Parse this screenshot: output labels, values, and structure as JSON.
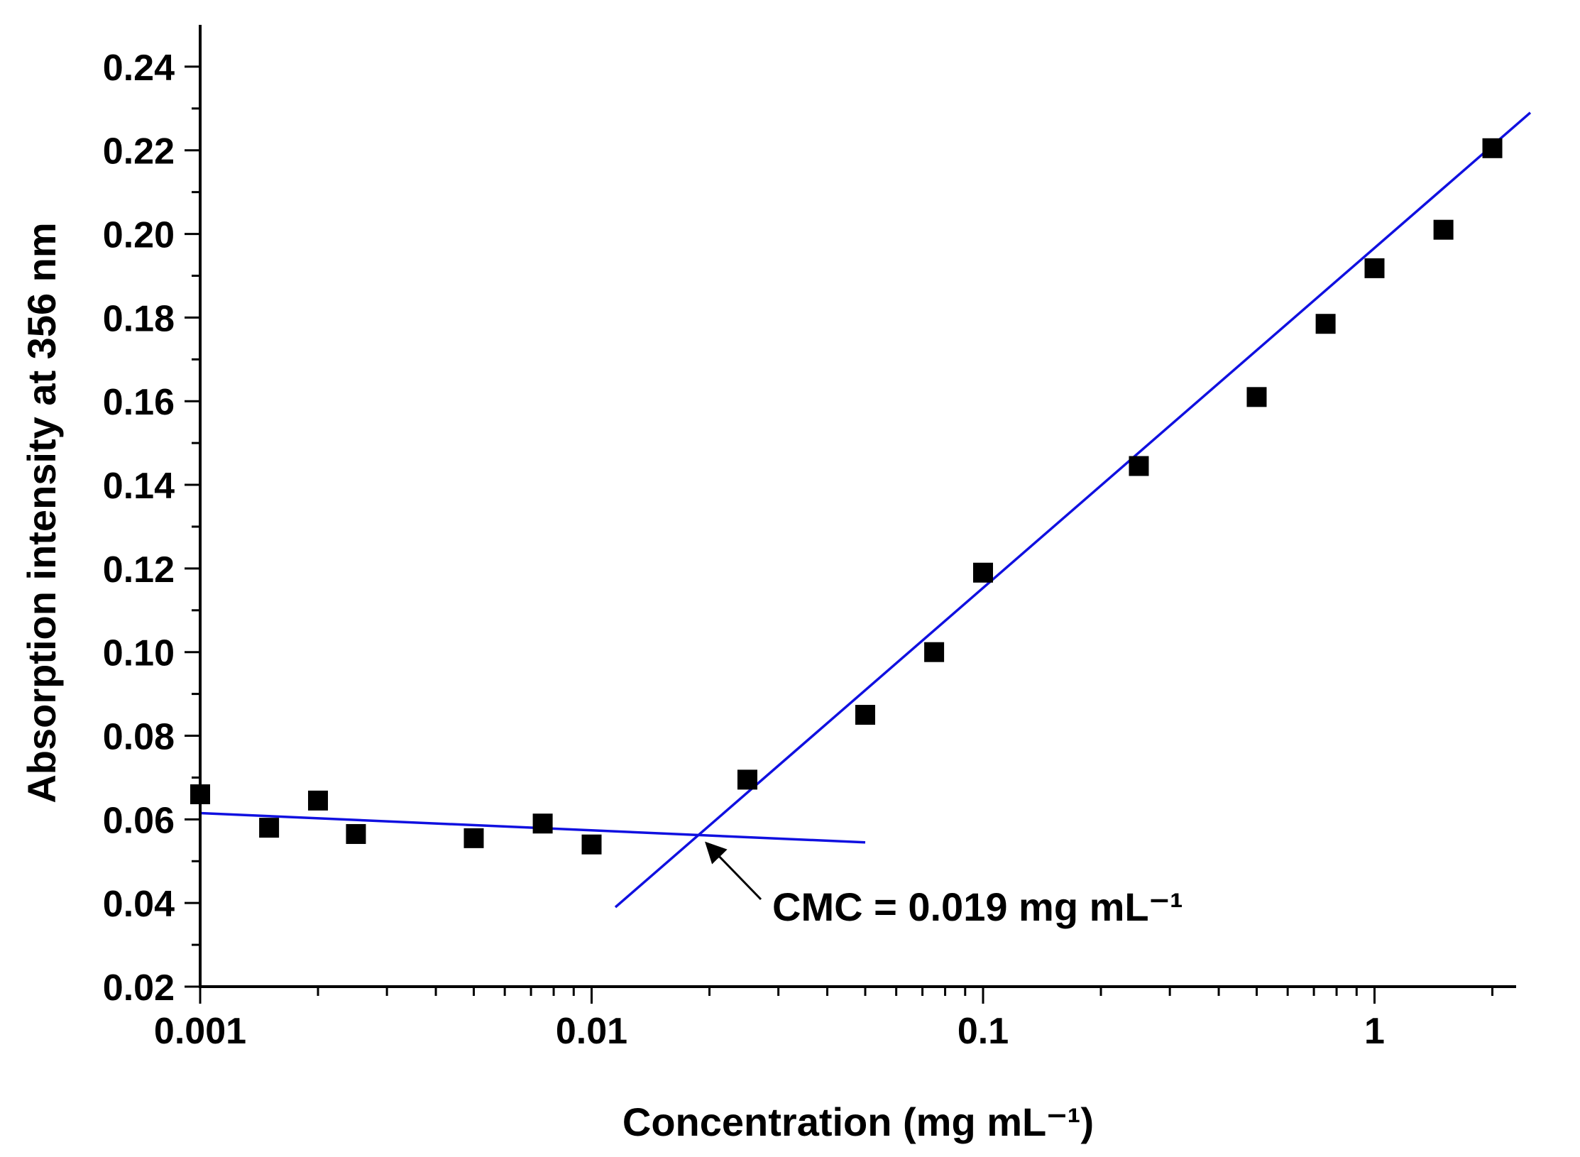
{
  "chart_data": {
    "type": "scatter",
    "xlabel": "Concentration (mg mL⁻¹)",
    "ylabel": "Absorption intensity at 356 nm",
    "xscale": "log",
    "xlim": [
      0.001,
      2.3
    ],
    "ylim": [
      0.02,
      0.25
    ],
    "xticks": [
      {
        "value": 0.001,
        "label": "0.001"
      },
      {
        "value": 0.01,
        "label": "0.01"
      },
      {
        "value": 0.1,
        "label": "0.1"
      },
      {
        "value": 1,
        "label": "1"
      }
    ],
    "yticks": [
      {
        "value": 0.02,
        "label": "0.02"
      },
      {
        "value": 0.04,
        "label": "0.04"
      },
      {
        "value": 0.06,
        "label": "0.06"
      },
      {
        "value": 0.08,
        "label": "0.08"
      },
      {
        "value": 0.1,
        "label": "0.10"
      },
      {
        "value": 0.12,
        "label": "0.12"
      },
      {
        "value": 0.14,
        "label": "0.14"
      },
      {
        "value": 0.16,
        "label": "0.16"
      },
      {
        "value": 0.18,
        "label": "0.18"
      },
      {
        "value": 0.2,
        "label": "0.20"
      },
      {
        "value": 0.22,
        "label": "0.22"
      },
      {
        "value": 0.24,
        "label": "0.24"
      }
    ],
    "grid": false,
    "legend": "none",
    "marker_color": "#000000",
    "fit_color": "#1010e0",
    "points": [
      {
        "x": 0.001,
        "y": 0.066
      },
      {
        "x": 0.0015,
        "y": 0.058
      },
      {
        "x": 0.002,
        "y": 0.0645
      },
      {
        "x": 0.0025,
        "y": 0.0565
      },
      {
        "x": 0.005,
        "y": 0.0555
      },
      {
        "x": 0.0075,
        "y": 0.059
      },
      {
        "x": 0.01,
        "y": 0.054
      },
      {
        "x": 0.025,
        "y": 0.0695
      },
      {
        "x": 0.05,
        "y": 0.085
      },
      {
        "x": 0.075,
        "y": 0.1
      },
      {
        "x": 0.1,
        "y": 0.119
      },
      {
        "x": 0.25,
        "y": 0.1445
      },
      {
        "x": 0.5,
        "y": 0.161
      },
      {
        "x": 0.75,
        "y": 0.1785
      },
      {
        "x": 1.0,
        "y": 0.1918
      },
      {
        "x": 1.5,
        "y": 0.201
      },
      {
        "x": 2.0,
        "y": 0.2205
      }
    ],
    "fit_lines": [
      {
        "x": [
          0.001,
          0.05
        ],
        "y": [
          0.0615,
          0.0545
        ]
      },
      {
        "x": [
          0.0115,
          2.5
        ],
        "y": [
          0.039,
          0.229
        ]
      }
    ],
    "annotation": {
      "text": "CMC = 0.019 mg mL⁻¹",
      "x": 0.019,
      "y": 0.056
    }
  }
}
